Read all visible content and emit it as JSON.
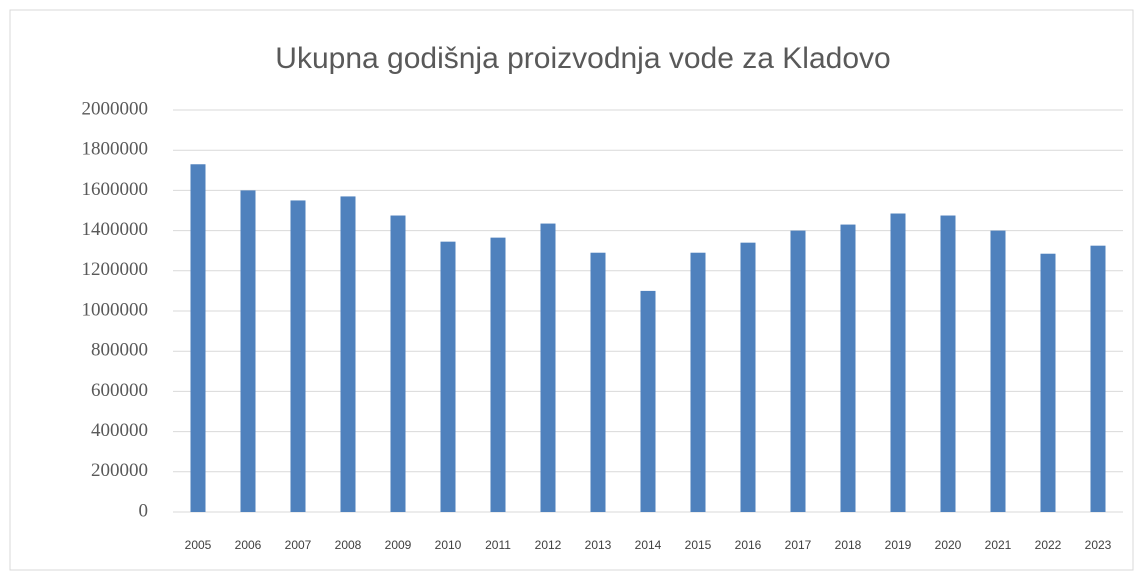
{
  "chart_data": {
    "type": "bar",
    "title": "Ukupna godišnja proizvodnja vode za Kladovo",
    "categories": [
      "2005",
      "2006",
      "2007",
      "2008",
      "2009",
      "2010",
      "2011",
      "2012",
      "2013",
      "2014",
      "2015",
      "2016",
      "2017",
      "2018",
      "2019",
      "2020",
      "2021",
      "2022",
      "2023"
    ],
    "values": [
      1730000,
      1600000,
      1550000,
      1570000,
      1475000,
      1345000,
      1365000,
      1435000,
      1290000,
      1100000,
      1290000,
      1340000,
      1400000,
      1430000,
      1485000,
      1475000,
      1400000,
      1285000,
      1325000
    ],
    "color": "#4f81bd",
    "ylim": [
      0,
      2000000
    ],
    "yticks": [
      0,
      200000,
      400000,
      600000,
      800000,
      1000000,
      1200000,
      1400000,
      1600000,
      1800000,
      2000000
    ],
    "grid": true
  }
}
